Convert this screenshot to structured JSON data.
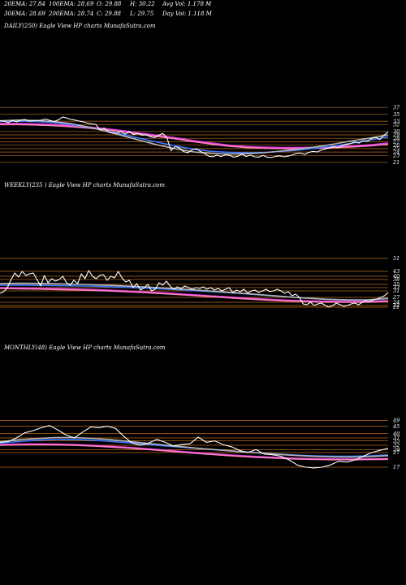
{
  "header": {
    "ema20": "20EMA: 27.84",
    "ema100": "100EMA: 28.69",
    "open": "O: 29.88",
    "high": "H: 30.22",
    "avg_vol": "Avg Vol: 1.178  M",
    "ema30": "30EMA: 28.69",
    "ema200": "200EMA: 28.74",
    "close": "C: 29.88",
    "low": "L: 29.75",
    "day_vol": "Day Vol: 1.118  M"
  },
  "colors": {
    "background": "#000000",
    "price": "#ffffff",
    "level_lines": "#b8681c",
    "ema_magenta": "#e040e0",
    "ema_pink": "#ff80c0",
    "ema_blue": "#3c78ff",
    "ema_gray": "#b4b4b4"
  },
  "chart_data": [
    {
      "type": "line",
      "title": "DAILY(250) Eagle  View  HP charts MunafaSutra.com",
      "ytick_labels": [
        "37",
        "35",
        "33",
        "32",
        "30",
        "29",
        "28",
        "27",
        "26",
        "25",
        "24",
        "23",
        "21"
      ],
      "ylim": [
        20,
        38
      ],
      "price_series": [
        33.1,
        33.0,
        32.6,
        33.2,
        32.8,
        33.3,
        33.5,
        33.0,
        33.1,
        33.2,
        33.3,
        33.6,
        33.2,
        32.9,
        33.4,
        34.2,
        33.9,
        33.5,
        33.3,
        33.0,
        32.8,
        32.4,
        32.2,
        32.0,
        30.4,
        31.0,
        29.8,
        29.5,
        29.6,
        29.9,
        29.2,
        30.0,
        29.1,
        29.4,
        28.9,
        29.0,
        28.5,
        28.2,
        28.9,
        29.4,
        28.1,
        24.4,
        25.6,
        25.2,
        24.1,
        23.8,
        24.6,
        25.0,
        24.2,
        23.6,
        22.8,
        22.6,
        23.1,
        22.7,
        23.2,
        23.0,
        22.5,
        22.8,
        23.4,
        22.7,
        23.1,
        22.6,
        22.5,
        23.0,
        22.5,
        22.4,
        22.7,
        22.9,
        22.6,
        22.8,
        23.1,
        23.6,
        23.7,
        23.3,
        23.9,
        24.2,
        24.0,
        24.6,
        24.9,
        25.2,
        25.6,
        25.3,
        25.9,
        26.2,
        26.5,
        26.9,
        26.6,
        27.3,
        27.1,
        27.9,
        28.3,
        27.6,
        28.9,
        29.9
      ],
      "ema_lines": [
        {
          "color": "#e040e0",
          "values": [
            32.3,
            32.3,
            32.2,
            32.0,
            31.7,
            31.3,
            30.8,
            30.2,
            29.5,
            28.8,
            28.1,
            27.3,
            26.6,
            26.0,
            25.6,
            25.4,
            25.3,
            25.3,
            25.4,
            25.6,
            25.8,
            26.1,
            26.6
          ]
        },
        {
          "color": "#ff80c0",
          "values": [
            32.0,
            32.0,
            31.9,
            31.7,
            31.4,
            31.0,
            30.5,
            29.9,
            29.2,
            28.5,
            27.8,
            27.0,
            26.3,
            25.7,
            25.3,
            25.1,
            25.0,
            25.0,
            25.1,
            25.3,
            25.5,
            25.8,
            26.3
          ]
        },
        {
          "color": "#3c78ff",
          "values": [
            32.9,
            33.0,
            32.9,
            32.6,
            32.0,
            31.2,
            30.2,
            29.1,
            27.9,
            26.8,
            25.7,
            24.8,
            24.2,
            23.9,
            23.8,
            23.9,
            24.2,
            24.6,
            25.2,
            25.8,
            26.6,
            27.5,
            28.4
          ]
        },
        {
          "color": "#b4b4b4",
          "values": [
            33.1,
            33.3,
            33.2,
            32.9,
            32.3,
            31.3,
            30.1,
            28.7,
            27.3,
            26.0,
            24.9,
            24.0,
            23.6,
            23.4,
            23.5,
            23.8,
            24.3,
            24.9,
            25.6,
            26.4,
            27.3,
            28.1,
            29.0
          ]
        }
      ]
    },
    {
      "type": "line",
      "title": "WEEKLY(235                          ) Eagle  View  HP charts MunafaSutra.com",
      "ytick_labels": [
        "51",
        "43",
        "40",
        "38",
        "35",
        "33",
        "31",
        "27",
        "24",
        "22",
        "21"
      ],
      "ylim": [
        18,
        54
      ],
      "price_series": [
        29.5,
        30.5,
        33.0,
        38.0,
        42.0,
        39.5,
        43.0,
        40.5,
        41.5,
        42.0,
        38.0,
        34.0,
        40.5,
        36.0,
        38.5,
        37.0,
        38.0,
        40.0,
        36.0,
        34.5,
        37.5,
        35.5,
        41.5,
        38.5,
        43.5,
        40.0,
        38.5,
        40.5,
        41.0,
        37.5,
        40.0,
        39.0,
        43.0,
        39.0,
        36.5,
        37.5,
        33.0,
        35.5,
        31.5,
        33.0,
        35.0,
        31.0,
        32.0,
        36.0,
        34.5,
        37.0,
        34.0,
        32.0,
        33.5,
        32.5,
        34.0,
        33.0,
        32.0,
        33.0,
        32.5,
        33.5,
        32.0,
        33.0,
        31.5,
        32.5,
        31.0,
        32.0,
        33.0,
        30.0,
        31.5,
        30.5,
        32.0,
        29.5,
        31.0,
        31.5,
        30.0,
        31.0,
        32.0,
        30.5,
        31.0,
        32.0,
        31.0,
        29.5,
        30.5,
        28.0,
        29.0,
        27.0,
        23.0,
        22.5,
        24.0,
        22.0,
        23.0,
        23.5,
        22.0,
        21.0,
        22.0,
        23.5,
        22.5,
        21.5,
        22.0,
        23.0,
        23.5,
        22.5,
        24.0,
        25.0,
        24.5,
        25.5,
        26.0,
        27.0,
        28.0,
        29.9
      ],
      "ema_lines": [
        {
          "color": "#e040e0",
          "values": [
            33.0,
            32.8,
            32.6,
            32.3,
            32.0,
            31.6,
            31.1,
            30.5,
            29.8,
            29.0,
            28.2,
            27.4,
            26.6,
            25.9,
            25.3,
            24.9,
            24.6,
            24.5,
            24.6,
            25.0
          ]
        },
        {
          "color": "#ff80c0",
          "values": [
            32.5,
            32.3,
            32.1,
            31.8,
            31.5,
            31.1,
            30.6,
            30.0,
            29.3,
            28.5,
            27.7,
            26.9,
            26.1,
            25.4,
            24.8,
            24.4,
            24.1,
            24.0,
            24.1,
            24.5
          ]
        },
        {
          "color": "#3c78ff",
          "values": [
            34.5,
            34.6,
            34.4,
            34.2,
            34.0,
            33.7,
            33.3,
            32.8,
            32.2,
            31.5,
            30.8,
            30.0,
            29.2,
            28.3,
            27.4,
            26.6,
            25.9,
            25.5,
            25.5,
            26.2
          ]
        },
        {
          "color": "#b4b4b4",
          "values": [
            35.5,
            35.7,
            35.6,
            35.3,
            35.0,
            34.6,
            34.1,
            33.5,
            32.8,
            32.0,
            31.2,
            30.3,
            29.4,
            28.4,
            27.4,
            26.5,
            25.8,
            25.4,
            25.5,
            26.4
          ]
        }
      ]
    },
    {
      "type": "line",
      "title": "MONTHLY(48) Eagle  View  HP charts MunafaSutra.com",
      "ytick_labels": [
        "49",
        "45",
        "40",
        "37",
        "35",
        "32",
        "29",
        "27",
        "17"
      ],
      "ylim": [
        12,
        52
      ],
      "price_series": [
        34.0,
        34.5,
        37.0,
        40.5,
        42.0,
        44.0,
        45.5,
        42.5,
        39.0,
        37.0,
        41.0,
        44.5,
        44.0,
        45.0,
        43.5,
        38.0,
        33.5,
        32.0,
        33.5,
        36.0,
        34.0,
        31.5,
        32.5,
        33.0,
        37.5,
        34.0,
        35.0,
        32.5,
        31.0,
        28.5,
        27.0,
        29.0,
        26.0,
        25.5,
        24.5,
        22.0,
        18.5,
        17.0,
        16.5,
        17.0,
        18.5,
        21.0,
        20.5,
        22.0,
        24.5,
        27.0,
        28.5,
        29.9
      ],
      "ema_lines": [
        {
          "color": "#e040e0",
          "values": [
            32.5,
            32.8,
            32.9,
            32.8,
            32.5,
            32.0,
            31.3,
            30.5,
            29.6,
            28.6,
            27.6,
            26.6,
            25.7,
            24.9,
            24.2,
            23.6,
            23.1,
            22.8,
            22.6,
            22.6,
            22.7,
            22.9
          ]
        },
        {
          "color": "#ff80c0",
          "values": [
            32.0,
            32.3,
            32.4,
            32.3,
            32.0,
            31.5,
            30.8,
            30.0,
            29.1,
            28.1,
            27.1,
            26.1,
            25.2,
            24.4,
            23.7,
            23.1,
            22.6,
            22.3,
            22.1,
            22.1,
            22.2,
            22.4
          ]
        },
        {
          "color": "#3c78ff",
          "values": [
            33.5,
            34.5,
            35.5,
            36.0,
            36.0,
            35.5,
            34.6,
            33.6,
            32.5,
            31.5,
            30.5,
            29.5,
            28.6,
            27.7,
            26.8,
            26.0,
            25.3,
            24.8,
            24.5,
            24.5,
            24.8,
            25.4
          ]
        },
        {
          "color": "#b4b4b4",
          "values": [
            34.5,
            35.7,
            36.6,
            37.2,
            37.2,
            36.7,
            35.8,
            34.6,
            33.3,
            32.0,
            30.8,
            29.6,
            28.6,
            27.6,
            26.7,
            25.8,
            25.0,
            24.4,
            24.0,
            23.9,
            24.2,
            24.9
          ]
        }
      ]
    }
  ]
}
